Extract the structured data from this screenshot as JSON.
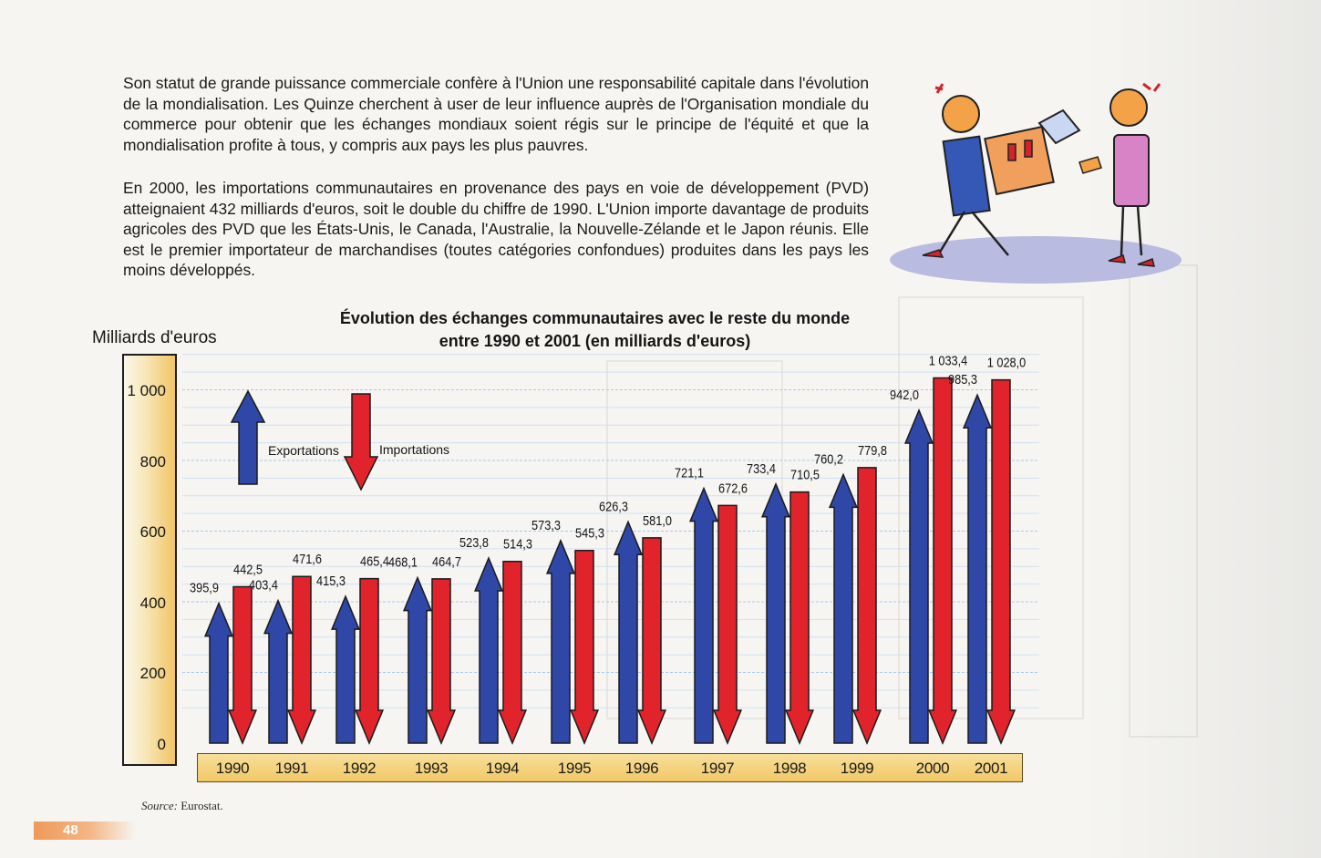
{
  "text": {
    "paragraph_1": "Son statut de grande puissance commerciale confère à l'Union une responsabilité capitale dans l'évolution de la mondialisation. Les Quinze cherchent à user de leur influence auprès de l'Organisation mondiale du commerce pour obtenir que les échanges mondiaux soient régis sur le principe de l'équité et que la mondialisation profite à tous, y compris aux pays les plus pauvres.",
    "paragraph_2": "En 2000, les importations communautaires en provenance des pays en voie de développement (PVD) atteignaient 432 milliards d'euros, soit le double du chiffre de 1990. L'Union importe davantage de produits agricoles des PVD que les États-Unis, le Canada, l'Australie, la Nouvelle-Zélande et le Japon réunis. Elle est le premier importateur de marchandises (toutes catégories confondues) produites dans les pays les moins développés."
  },
  "chart_data": {
    "type": "bar",
    "title_line1": "Évolution des échanges communautaires avec le reste du monde",
    "title_line2": "entre 1990 et 2001 (en milliards d'euros)",
    "ylabel": "Milliards d'euros",
    "ylim": [
      0,
      1100
    ],
    "yticks": [
      "0",
      "200",
      "400",
      "600",
      "800",
      "1 000"
    ],
    "categories": [
      "1990",
      "1991",
      "1992",
      "1993",
      "1994",
      "1995",
      "1996",
      "1997",
      "1998",
      "1999",
      "2000",
      "2001"
    ],
    "legend_export": "Exportations",
    "legend_import": "Importations",
    "colors": {
      "export": "#2f48a8",
      "import": "#e1242c"
    },
    "series": [
      {
        "name": "Exportations",
        "values": [
          395.9,
          403.4,
          415.3,
          468.1,
          523.8,
          573.3,
          626.3,
          721.1,
          733.4,
          760.2,
          942.0,
          985.3
        ],
        "labels": [
          "395,9",
          "403,4",
          "415,3",
          "468,1",
          "523,8",
          "573,3",
          "626,3",
          "721,1",
          "733,4",
          "760,2",
          "942,0",
          "985,3"
        ]
      },
      {
        "name": "Importations",
        "values": [
          442.5,
          471.6,
          465.4,
          464.7,
          514.3,
          545.3,
          581.0,
          672.6,
          710.5,
          779.8,
          1033.4,
          1028.0
        ],
        "labels": [
          "442,5",
          "471,6",
          "465,4",
          "464,7",
          "514,3",
          "545,3",
          "581,0",
          "672,6",
          "710,5",
          "779,8",
          "1 033,4",
          "1 028,0"
        ]
      }
    ]
  },
  "footer": {
    "source_prefix": "Source:",
    "source_text": "Eurostat.",
    "page_number": "48"
  }
}
